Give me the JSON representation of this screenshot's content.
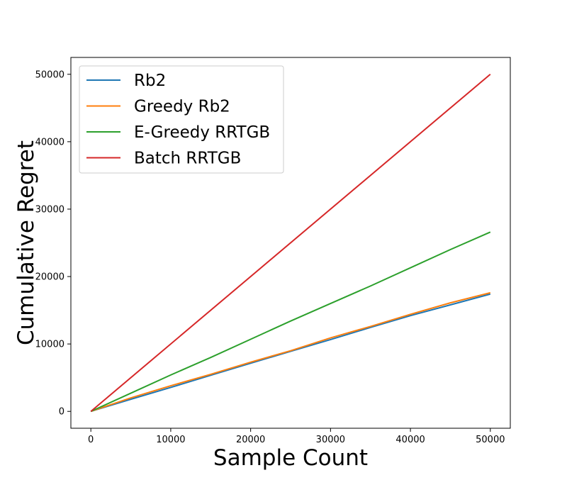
{
  "chart_data": {
    "type": "line",
    "title": "",
    "xlabel": "Sample Count",
    "ylabel": "Cumulative Regret",
    "xlim": [
      -2500,
      52500
    ],
    "ylim": [
      -2500,
      52500
    ],
    "xticks": [
      0,
      10000,
      20000,
      30000,
      40000,
      50000
    ],
    "yticks": [
      0,
      10000,
      20000,
      30000,
      40000,
      50000
    ],
    "grid": false,
    "legend_position": "top-left",
    "series": [
      {
        "name": "Rb2",
        "color": "#1f77b4",
        "x": [
          0,
          5000,
          10000,
          15000,
          20000,
          25000,
          30000,
          35000,
          40000,
          45000,
          50000
        ],
        "y": [
          0,
          1800,
          3550,
          5350,
          7150,
          8900,
          10650,
          12450,
          14200,
          15800,
          17400
        ]
      },
      {
        "name": "Greedy Rb2",
        "color": "#ff7f0e",
        "x": [
          0,
          5000,
          10000,
          15000,
          20000,
          25000,
          30000,
          35000,
          40000,
          45000,
          50000
        ],
        "y": [
          0,
          2000,
          3800,
          5500,
          7300,
          9000,
          10900,
          12600,
          14400,
          16100,
          17600
        ]
      },
      {
        "name": "E-Greedy RRTGB",
        "color": "#2ca02c",
        "x": [
          0,
          5000,
          10000,
          15000,
          20000,
          25000,
          30000,
          35000,
          40000,
          45000,
          50000
        ],
        "y": [
          0,
          2700,
          5400,
          8000,
          10700,
          13400,
          16000,
          18600,
          21300,
          24000,
          26600
        ]
      },
      {
        "name": "Batch RRTGB",
        "color": "#d62728",
        "x": [
          0,
          50000
        ],
        "y": [
          0,
          50000
        ]
      }
    ]
  }
}
